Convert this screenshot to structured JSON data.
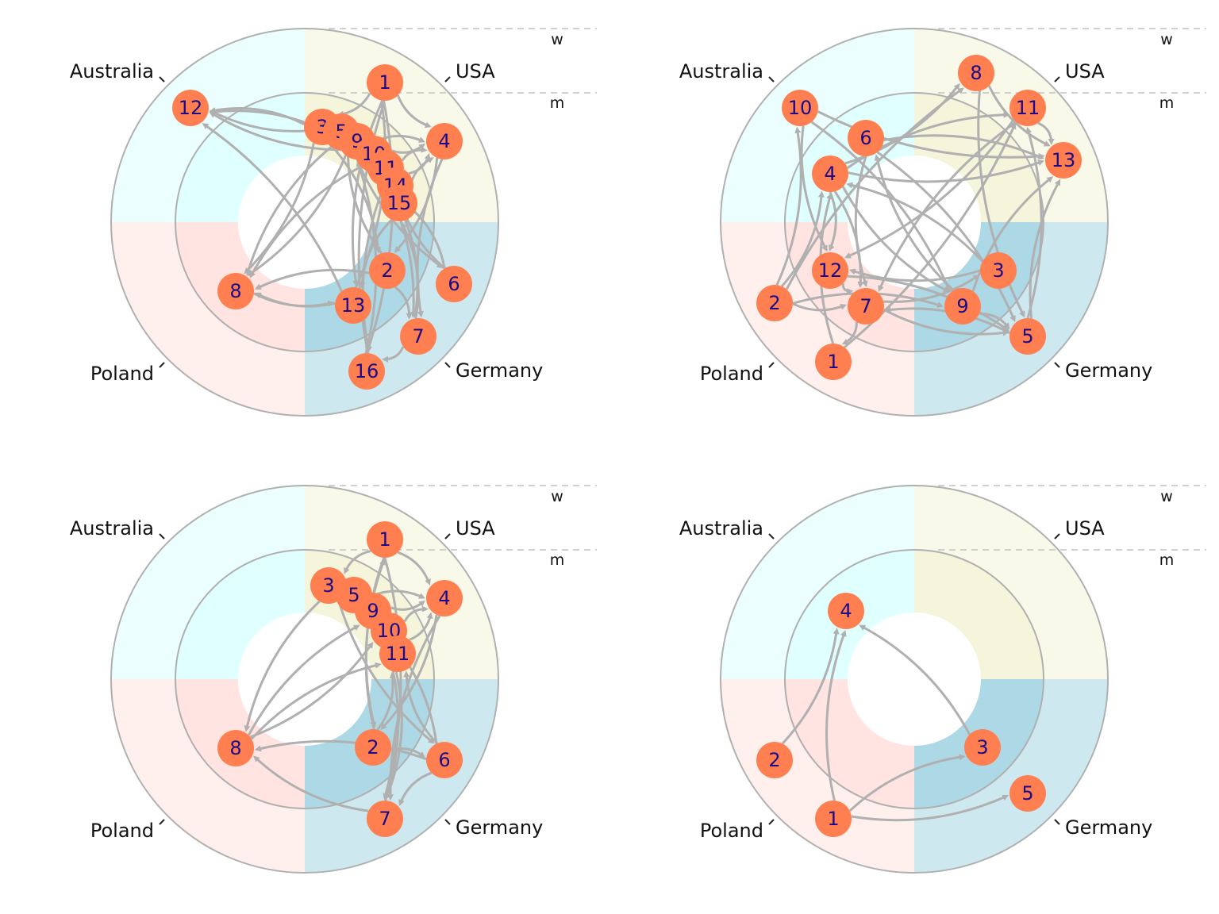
{
  "colors": {
    "background": "#ffffff",
    "sector_australia": "#e0ffff",
    "sector_usa": "#f5f5dc",
    "sector_poland": "#ffe4e1",
    "sector_germany": "#add8e6",
    "ring_stroke": "#b0b0b0",
    "edge": "#b0b0b0",
    "node_fill": "#ff7f50",
    "node_text": "#1a0a8a",
    "sector_text": "#111111",
    "dashed_line": "#c0c0c0"
  },
  "sectors": [
    "Australia",
    "USA",
    "Poland",
    "Germany"
  ],
  "rings": [
    "w",
    "m"
  ],
  "panels": [
    {
      "nodes": [
        {
          "label": "1"
        },
        {
          "label": "12"
        },
        {
          "label": "3"
        },
        {
          "label": "5"
        },
        {
          "label": "9"
        },
        {
          "label": "4"
        },
        {
          "label": "10"
        },
        {
          "label": "11"
        },
        {
          "label": "14"
        },
        {
          "label": "15"
        },
        {
          "label": "2"
        },
        {
          "label": "6"
        },
        {
          "label": "8"
        },
        {
          "label": "13"
        },
        {
          "label": "7"
        },
        {
          "label": "16"
        }
      ],
      "edges": [
        [
          "3",
          "12"
        ],
        [
          "5",
          "12"
        ],
        [
          "9",
          "12"
        ],
        [
          "10",
          "12"
        ],
        [
          "13",
          "12"
        ],
        [
          "3",
          "8"
        ],
        [
          "5",
          "8"
        ],
        [
          "9",
          "8"
        ],
        [
          "10",
          "8"
        ],
        [
          "13",
          "8"
        ],
        [
          "2",
          "8"
        ],
        [
          "1",
          "3"
        ],
        [
          "1",
          "4"
        ],
        [
          "1",
          "16"
        ],
        [
          "1",
          "13"
        ],
        [
          "4",
          "2"
        ],
        [
          "4",
          "7"
        ],
        [
          "9",
          "4"
        ],
        [
          "10",
          "4"
        ],
        [
          "11",
          "4"
        ],
        [
          "14",
          "4"
        ],
        [
          "15",
          "4"
        ],
        [
          "6",
          "14"
        ],
        [
          "6",
          "11"
        ],
        [
          "7",
          "15"
        ],
        [
          "16",
          "1"
        ],
        [
          "16",
          "9"
        ],
        [
          "2",
          "7"
        ],
        [
          "11",
          "16"
        ],
        [
          "14",
          "7"
        ],
        [
          "13",
          "1"
        ],
        [
          "7",
          "16"
        ],
        [
          "8",
          "13"
        ],
        [
          "3",
          "2"
        ],
        [
          "5",
          "6"
        ],
        [
          "2",
          "5"
        ],
        [
          "15",
          "13"
        ],
        [
          "10",
          "7"
        ]
      ]
    },
    {
      "nodes": [
        {
          "label": "8"
        },
        {
          "label": "10"
        },
        {
          "label": "11"
        },
        {
          "label": "6"
        },
        {
          "label": "13"
        },
        {
          "label": "4"
        },
        {
          "label": "12"
        },
        {
          "label": "3"
        },
        {
          "label": "2"
        },
        {
          "label": "7"
        },
        {
          "label": "9"
        },
        {
          "label": "5"
        },
        {
          "label": "1"
        }
      ],
      "edges": [
        [
          "10",
          "13"
        ],
        [
          "10",
          "9"
        ],
        [
          "10",
          "12"
        ],
        [
          "6",
          "13"
        ],
        [
          "6",
          "7"
        ],
        [
          "6",
          "5"
        ],
        [
          "4",
          "8"
        ],
        [
          "4",
          "11"
        ],
        [
          "4",
          "13"
        ],
        [
          "4",
          "12"
        ],
        [
          "4",
          "9"
        ],
        [
          "4",
          "7"
        ],
        [
          "8",
          "13"
        ],
        [
          "11",
          "12"
        ],
        [
          "11",
          "7"
        ],
        [
          "11",
          "13"
        ],
        [
          "3",
          "4"
        ],
        [
          "3",
          "12"
        ],
        [
          "2",
          "10"
        ],
        [
          "2",
          "8"
        ],
        [
          "2",
          "4"
        ],
        [
          "2",
          "9"
        ],
        [
          "2",
          "7"
        ],
        [
          "12",
          "5"
        ],
        [
          "7",
          "3"
        ],
        [
          "7",
          "1"
        ],
        [
          "7",
          "5"
        ],
        [
          "1",
          "4"
        ],
        [
          "1",
          "11"
        ],
        [
          "9",
          "5"
        ],
        [
          "5",
          "7"
        ],
        [
          "5",
          "13"
        ],
        [
          "5",
          "11"
        ],
        [
          "9",
          "13"
        ],
        [
          "12",
          "7"
        ],
        [
          "9",
          "6"
        ],
        [
          "8",
          "5"
        ]
      ]
    },
    {
      "nodes": [
        {
          "label": "1"
        },
        {
          "label": "3"
        },
        {
          "label": "5"
        },
        {
          "label": "4"
        },
        {
          "label": "9"
        },
        {
          "label": "10"
        },
        {
          "label": "11"
        },
        {
          "label": "8"
        },
        {
          "label": "2"
        },
        {
          "label": "6"
        },
        {
          "label": "7"
        }
      ],
      "edges": [
        [
          "3",
          "8"
        ],
        [
          "8",
          "9"
        ],
        [
          "8",
          "10"
        ],
        [
          "8",
          "11"
        ],
        [
          "6",
          "8"
        ],
        [
          "7",
          "8"
        ],
        [
          "1",
          "3"
        ],
        [
          "1",
          "4"
        ],
        [
          "1",
          "2"
        ],
        [
          "1",
          "7"
        ],
        [
          "9",
          "4"
        ],
        [
          "10",
          "4"
        ],
        [
          "11",
          "4"
        ],
        [
          "5",
          "4"
        ],
        [
          "4",
          "7"
        ],
        [
          "4",
          "2"
        ],
        [
          "6",
          "9"
        ],
        [
          "6",
          "11"
        ],
        [
          "2",
          "11"
        ],
        [
          "2",
          "6"
        ],
        [
          "6",
          "7"
        ],
        [
          "11",
          "7"
        ],
        [
          "7",
          "10"
        ],
        [
          "2",
          "1"
        ],
        [
          "3",
          "6"
        ]
      ]
    },
    {
      "nodes": [
        {
          "label": "4"
        },
        {
          "label": "3"
        },
        {
          "label": "2"
        },
        {
          "label": "1"
        },
        {
          "label": "5"
        }
      ],
      "edges": [
        [
          "2",
          "4"
        ],
        [
          "1",
          "4"
        ],
        [
          "3",
          "4"
        ],
        [
          "1",
          "3"
        ],
        [
          "1",
          "5"
        ]
      ]
    }
  ]
}
